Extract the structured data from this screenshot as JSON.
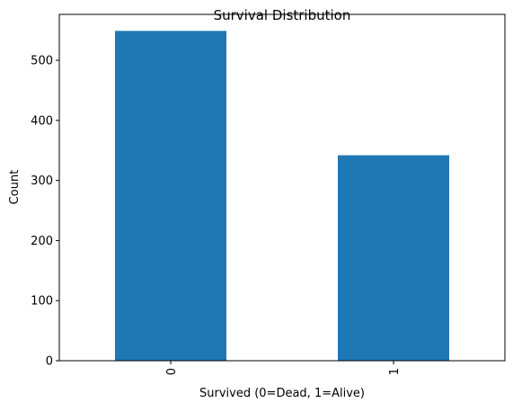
{
  "chart_data": {
    "type": "bar",
    "title": "Survival Distribution",
    "xlabel": "Survived (0=Dead, 1=Alive)",
    "ylabel": "Count",
    "categories": [
      "0",
      "1"
    ],
    "values": [
      549,
      342
    ],
    "ylim": [
      0,
      576.45
    ],
    "yticks": [
      0,
      100,
      200,
      300,
      400,
      500
    ],
    "bar_color": "#1f77b4",
    "grid": false,
    "legend": "none"
  }
}
